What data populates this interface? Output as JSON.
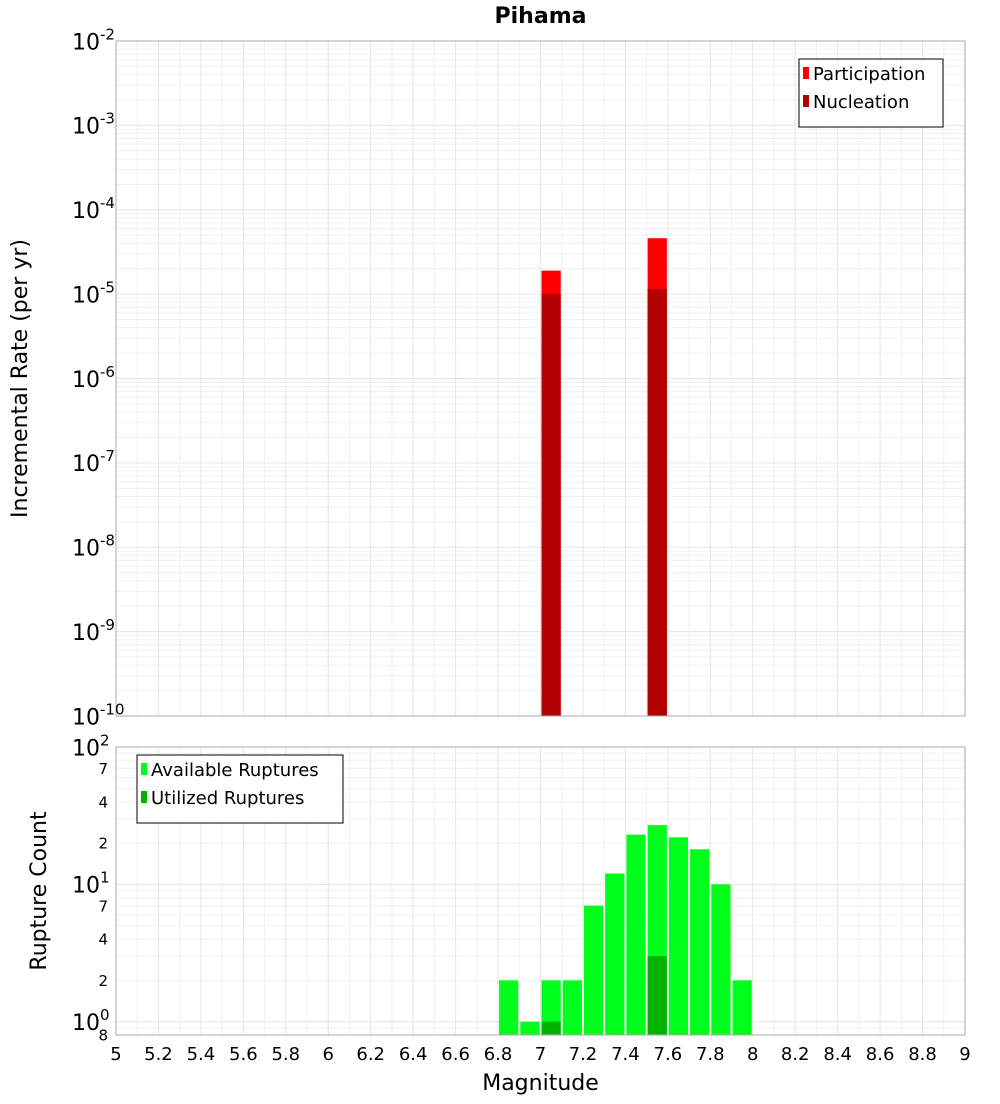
{
  "chart_data": {
    "title": "Pihama",
    "xlabel": "Magnitude",
    "xlim": [
      5,
      9
    ],
    "x_ticks": [
      "5",
      "5.2",
      "5.4",
      "5.6",
      "5.8",
      "6",
      "6.2",
      "6.4",
      "6.6",
      "6.8",
      "7",
      "7.2",
      "7.4",
      "7.6",
      "7.8",
      "8",
      "8.2",
      "8.4",
      "8.6",
      "8.8",
      "9"
    ],
    "panels": [
      {
        "type": "bar",
        "scale": "log",
        "ylabel": "Incremental Rate (per yr)",
        "ylim": [
          1e-10,
          0.01
        ],
        "y_ticks": [
          {
            "base": "10",
            "exp": "-2"
          },
          {
            "base": "10",
            "exp": "-3"
          },
          {
            "base": "10",
            "exp": "-4"
          },
          {
            "base": "10",
            "exp": "-5"
          },
          {
            "base": "10",
            "exp": "-6"
          },
          {
            "base": "10",
            "exp": "-7"
          },
          {
            "base": "10",
            "exp": "-8"
          },
          {
            "base": "10",
            "exp": "-9"
          },
          {
            "base": "10",
            "exp": "-10"
          }
        ],
        "legend": "top-right",
        "series": [
          {
            "name": "Participation",
            "color": "#ff0000",
            "x": [
              7.05,
              7.55
            ],
            "values": [
              1.9e-05,
              4.6e-05
            ]
          },
          {
            "name": "Nucleation",
            "color": "#b30000",
            "x": [
              7.05,
              7.55
            ],
            "values": [
              1e-05,
              1.15e-05
            ]
          }
        ]
      },
      {
        "type": "bar",
        "scale": "log",
        "ylabel": "Rupture Count",
        "ylim": [
          0.8,
          100
        ],
        "y_ticks": [
          {
            "base": "10",
            "exp": "2"
          },
          {
            "base": "7",
            "exp": ""
          },
          {
            "base": "4",
            "exp": ""
          },
          {
            "base": "2",
            "exp": ""
          },
          {
            "base": "10",
            "exp": "1"
          },
          {
            "base": "7",
            "exp": ""
          },
          {
            "base": "4",
            "exp": ""
          },
          {
            "base": "2",
            "exp": ""
          },
          {
            "base": "10",
            "exp": "0"
          },
          {
            "base": "8",
            "exp": ""
          }
        ],
        "legend": "top-left",
        "series": [
          {
            "name": "Available Ruptures",
            "color": "#00ff1a",
            "x": [
              6.85,
              6.95,
              7.05,
              7.15,
              7.25,
              7.35,
              7.45,
              7.55,
              7.65,
              7.75,
              7.85,
              7.95
            ],
            "values": [
              2,
              1,
              2,
              2,
              7,
              12,
              23,
              27,
              22,
              18,
              10,
              2
            ]
          },
          {
            "name": "Utilized Ruptures",
            "color": "#00b300",
            "x": [
              7.05,
              7.55
            ],
            "values": [
              1,
              3
            ]
          }
        ]
      }
    ]
  }
}
